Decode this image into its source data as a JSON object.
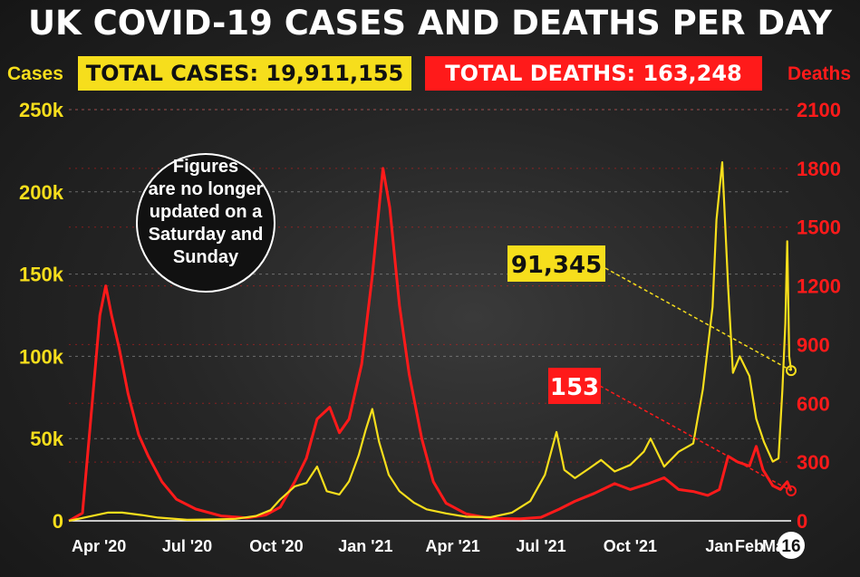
{
  "header": {
    "title": "UK COVID-19 CASES AND DEATHS PER DAY",
    "left_axis_name": "Cases",
    "right_axis_name": "Deaths",
    "total_cases_banner": "TOTAL CASES: 19,911,155",
    "total_deaths_banner": "TOTAL DEATHS: 163,248"
  },
  "colors": {
    "cases": "#f6de1c",
    "deaths": "#ff1a1a",
    "text": "#ffffff",
    "grid": "#8a8a8a"
  },
  "chart_data": {
    "type": "line",
    "title": "UK COVID-19 CASES AND DEATHS PER DAY",
    "x_ticks": [
      "Apr '20",
      "Jul '20",
      "Oct '20",
      "Jan '21",
      "Apr '21",
      "Jul '21",
      "Oct '21",
      "Jan",
      "Feb",
      "Mar",
      "16"
    ],
    "y_left": {
      "label": "Cases",
      "range": [
        0,
        250000
      ],
      "ticks": [
        "0",
        "50k",
        "100k",
        "150k",
        "200k",
        "250k"
      ]
    },
    "y_right": {
      "label": "Deaths",
      "range": [
        0,
        2100
      ],
      "ticks": [
        "0",
        "300",
        "600",
        "900",
        "1200",
        "1500",
        "1800",
        "2100"
      ]
    },
    "grid": true,
    "x_range": [
      "2020-03-01",
      "2022-03-16"
    ],
    "series": [
      {
        "name": "Cases",
        "axis": "left",
        "points": [
          [
            "2020-03-01",
            0
          ],
          [
            "2020-03-25",
            3000
          ],
          [
            "2020-04-10",
            5000
          ],
          [
            "2020-04-25",
            5000
          ],
          [
            "2020-05-15",
            3500
          ],
          [
            "2020-06-01",
            2000
          ],
          [
            "2020-07-01",
            600
          ],
          [
            "2020-08-01",
            900
          ],
          [
            "2020-08-20",
            1200
          ],
          [
            "2020-09-10",
            3000
          ],
          [
            "2020-09-25",
            6500
          ],
          [
            "2020-10-05",
            13000
          ],
          [
            "2020-10-20",
            21000
          ],
          [
            "2020-11-01",
            23000
          ],
          [
            "2020-11-12",
            33000
          ],
          [
            "2020-11-22",
            18000
          ],
          [
            "2020-12-05",
            16000
          ],
          [
            "2020-12-15",
            24000
          ],
          [
            "2020-12-25",
            40000
          ],
          [
            "2021-01-01",
            55000
          ],
          [
            "2021-01-08",
            68000
          ],
          [
            "2021-01-15",
            48000
          ],
          [
            "2021-01-25",
            28000
          ],
          [
            "2021-02-05",
            18000
          ],
          [
            "2021-02-20",
            11000
          ],
          [
            "2021-03-05",
            7000
          ],
          [
            "2021-03-25",
            4500
          ],
          [
            "2021-04-15",
            2500
          ],
          [
            "2021-05-10",
            2200
          ],
          [
            "2021-06-01",
            5000
          ],
          [
            "2021-06-20",
            12000
          ],
          [
            "2021-07-05",
            28000
          ],
          [
            "2021-07-17",
            54000
          ],
          [
            "2021-07-25",
            31000
          ],
          [
            "2021-08-05",
            26000
          ],
          [
            "2021-08-20",
            32000
          ],
          [
            "2021-09-01",
            37000
          ],
          [
            "2021-09-15",
            30000
          ],
          [
            "2021-10-01",
            34000
          ],
          [
            "2021-10-15",
            42000
          ],
          [
            "2021-10-22",
            50000
          ],
          [
            "2021-11-05",
            33000
          ],
          [
            "2021-11-20",
            42000
          ],
          [
            "2021-12-05",
            47000
          ],
          [
            "2021-12-15",
            80000
          ],
          [
            "2021-12-25",
            130000
          ],
          [
            "2021-12-29",
            183000
          ],
          [
            "2022-01-04",
            218000
          ],
          [
            "2022-01-10",
            142000
          ],
          [
            "2022-01-15",
            90000
          ],
          [
            "2022-01-22",
            100000
          ],
          [
            "2022-02-01",
            88000
          ],
          [
            "2022-02-08",
            62000
          ],
          [
            "2022-02-16",
            48000
          ],
          [
            "2022-02-25",
            36000
          ],
          [
            "2022-03-03",
            38000
          ],
          [
            "2022-03-07",
            80000
          ],
          [
            "2022-03-10",
            120000
          ],
          [
            "2022-03-12",
            170000
          ],
          [
            "2022-03-14",
            100000
          ],
          [
            "2022-03-16",
            91345
          ]
        ]
      },
      {
        "name": "Deaths",
        "axis": "right",
        "points": [
          [
            "2020-03-01",
            0
          ],
          [
            "2020-03-15",
            40
          ],
          [
            "2020-03-25",
            600
          ],
          [
            "2020-04-02",
            1050
          ],
          [
            "2020-04-08",
            1200
          ],
          [
            "2020-04-14",
            1050
          ],
          [
            "2020-04-22",
            880
          ],
          [
            "2020-05-01",
            650
          ],
          [
            "2020-05-12",
            440
          ],
          [
            "2020-05-22",
            330
          ],
          [
            "2020-06-05",
            200
          ],
          [
            "2020-06-20",
            110
          ],
          [
            "2020-07-10",
            60
          ],
          [
            "2020-08-05",
            25
          ],
          [
            "2020-09-01",
            15
          ],
          [
            "2020-09-20",
            30
          ],
          [
            "2020-10-05",
            70
          ],
          [
            "2020-10-20",
            200
          ],
          [
            "2020-11-01",
            320
          ],
          [
            "2020-11-12",
            520
          ],
          [
            "2020-11-25",
            580
          ],
          [
            "2020-12-05",
            450
          ],
          [
            "2020-12-15",
            520
          ],
          [
            "2020-12-28",
            800
          ],
          [
            "2021-01-08",
            1250
          ],
          [
            "2021-01-19",
            1800
          ],
          [
            "2021-01-26",
            1600
          ],
          [
            "2021-02-05",
            1100
          ],
          [
            "2021-02-15",
            750
          ],
          [
            "2021-02-28",
            420
          ],
          [
            "2021-03-12",
            200
          ],
          [
            "2021-03-25",
            90
          ],
          [
            "2021-04-15",
            35
          ],
          [
            "2021-05-10",
            12
          ],
          [
            "2021-06-10",
            10
          ],
          [
            "2021-07-01",
            18
          ],
          [
            "2021-07-20",
            60
          ],
          [
            "2021-08-05",
            100
          ],
          [
            "2021-08-25",
            140
          ],
          [
            "2021-09-15",
            190
          ],
          [
            "2021-10-01",
            160
          ],
          [
            "2021-10-20",
            190
          ],
          [
            "2021-11-05",
            220
          ],
          [
            "2021-11-20",
            160
          ],
          [
            "2021-12-05",
            150
          ],
          [
            "2021-12-20",
            130
          ],
          [
            "2022-01-01",
            160
          ],
          [
            "2022-01-10",
            330
          ],
          [
            "2022-01-20",
            300
          ],
          [
            "2022-02-01",
            280
          ],
          [
            "2022-02-08",
            380
          ],
          [
            "2022-02-15",
            260
          ],
          [
            "2022-02-25",
            180
          ],
          [
            "2022-03-05",
            160
          ],
          [
            "2022-03-12",
            200
          ],
          [
            "2022-03-16",
            153
          ]
        ]
      }
    ],
    "annotations": [
      {
        "text": "Figures are no longer updated on a Saturday and Sunday",
        "lines": [
          "Figures",
          "are no longer",
          "updated on a",
          "Saturday and",
          "Sunday"
        ]
      },
      {
        "text": "91,345",
        "series": "Cases",
        "x": "2022-03-16",
        "y": 91345
      },
      {
        "text": "153",
        "series": "Deaths",
        "x": "2022-03-16",
        "y": 153
      }
    ]
  }
}
